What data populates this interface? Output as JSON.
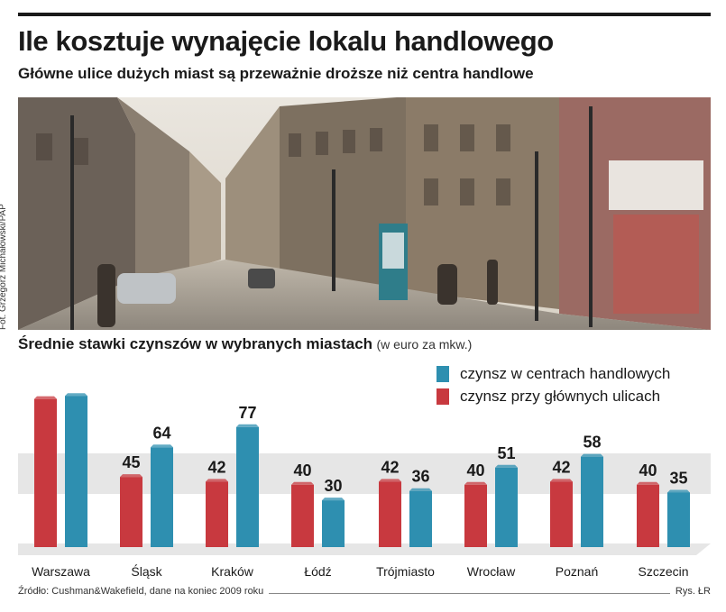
{
  "title": "Ile kosztuje wynajęcie lokalu handlowego",
  "subtitle": "Główne ulice dużych miast są przeważnie droższe niż centra handlowe",
  "photo_credit": "Fot. Grzegorz Michałowski/PAP",
  "chart_heading": "Średnie stawki czynszów w wybranych miastach",
  "chart_unit": "(w euro za mkw.)",
  "source": "Źródło: Cushman&Wakefield, dane na koniec 2009 roku",
  "author": "Rys. ŁR",
  "colors": {
    "street": "#c8393f",
    "mall": "#2e8fb0",
    "band": "#e6e6e6"
  },
  "chart_data": {
    "type": "bar",
    "categories": [
      "Warszawa",
      "Śląsk",
      "Kraków",
      "Łódź",
      "Trójmiasto",
      "Wrocław",
      "Poznań",
      "Szczecin"
    ],
    "series": [
      {
        "name": "czynsz przy głównych ulicach",
        "values": [
          95,
          45,
          42,
          40,
          42,
          40,
          42,
          40
        ],
        "labels": [
          "",
          "45",
          "42",
          "40",
          "42",
          "40",
          "42",
          "40"
        ]
      },
      {
        "name": "czynsz w centrach handlowych",
        "values": [
          97,
          64,
          77,
          30,
          36,
          51,
          58,
          35
        ],
        "labels": [
          "",
          "64",
          "77",
          "30",
          "36",
          "51",
          "58",
          "35"
        ]
      }
    ],
    "legend": [
      "czynsz w centrach handlowych",
      "czynsz przy głównych ulicach"
    ],
    "ylim": [
      0,
      100
    ]
  }
}
